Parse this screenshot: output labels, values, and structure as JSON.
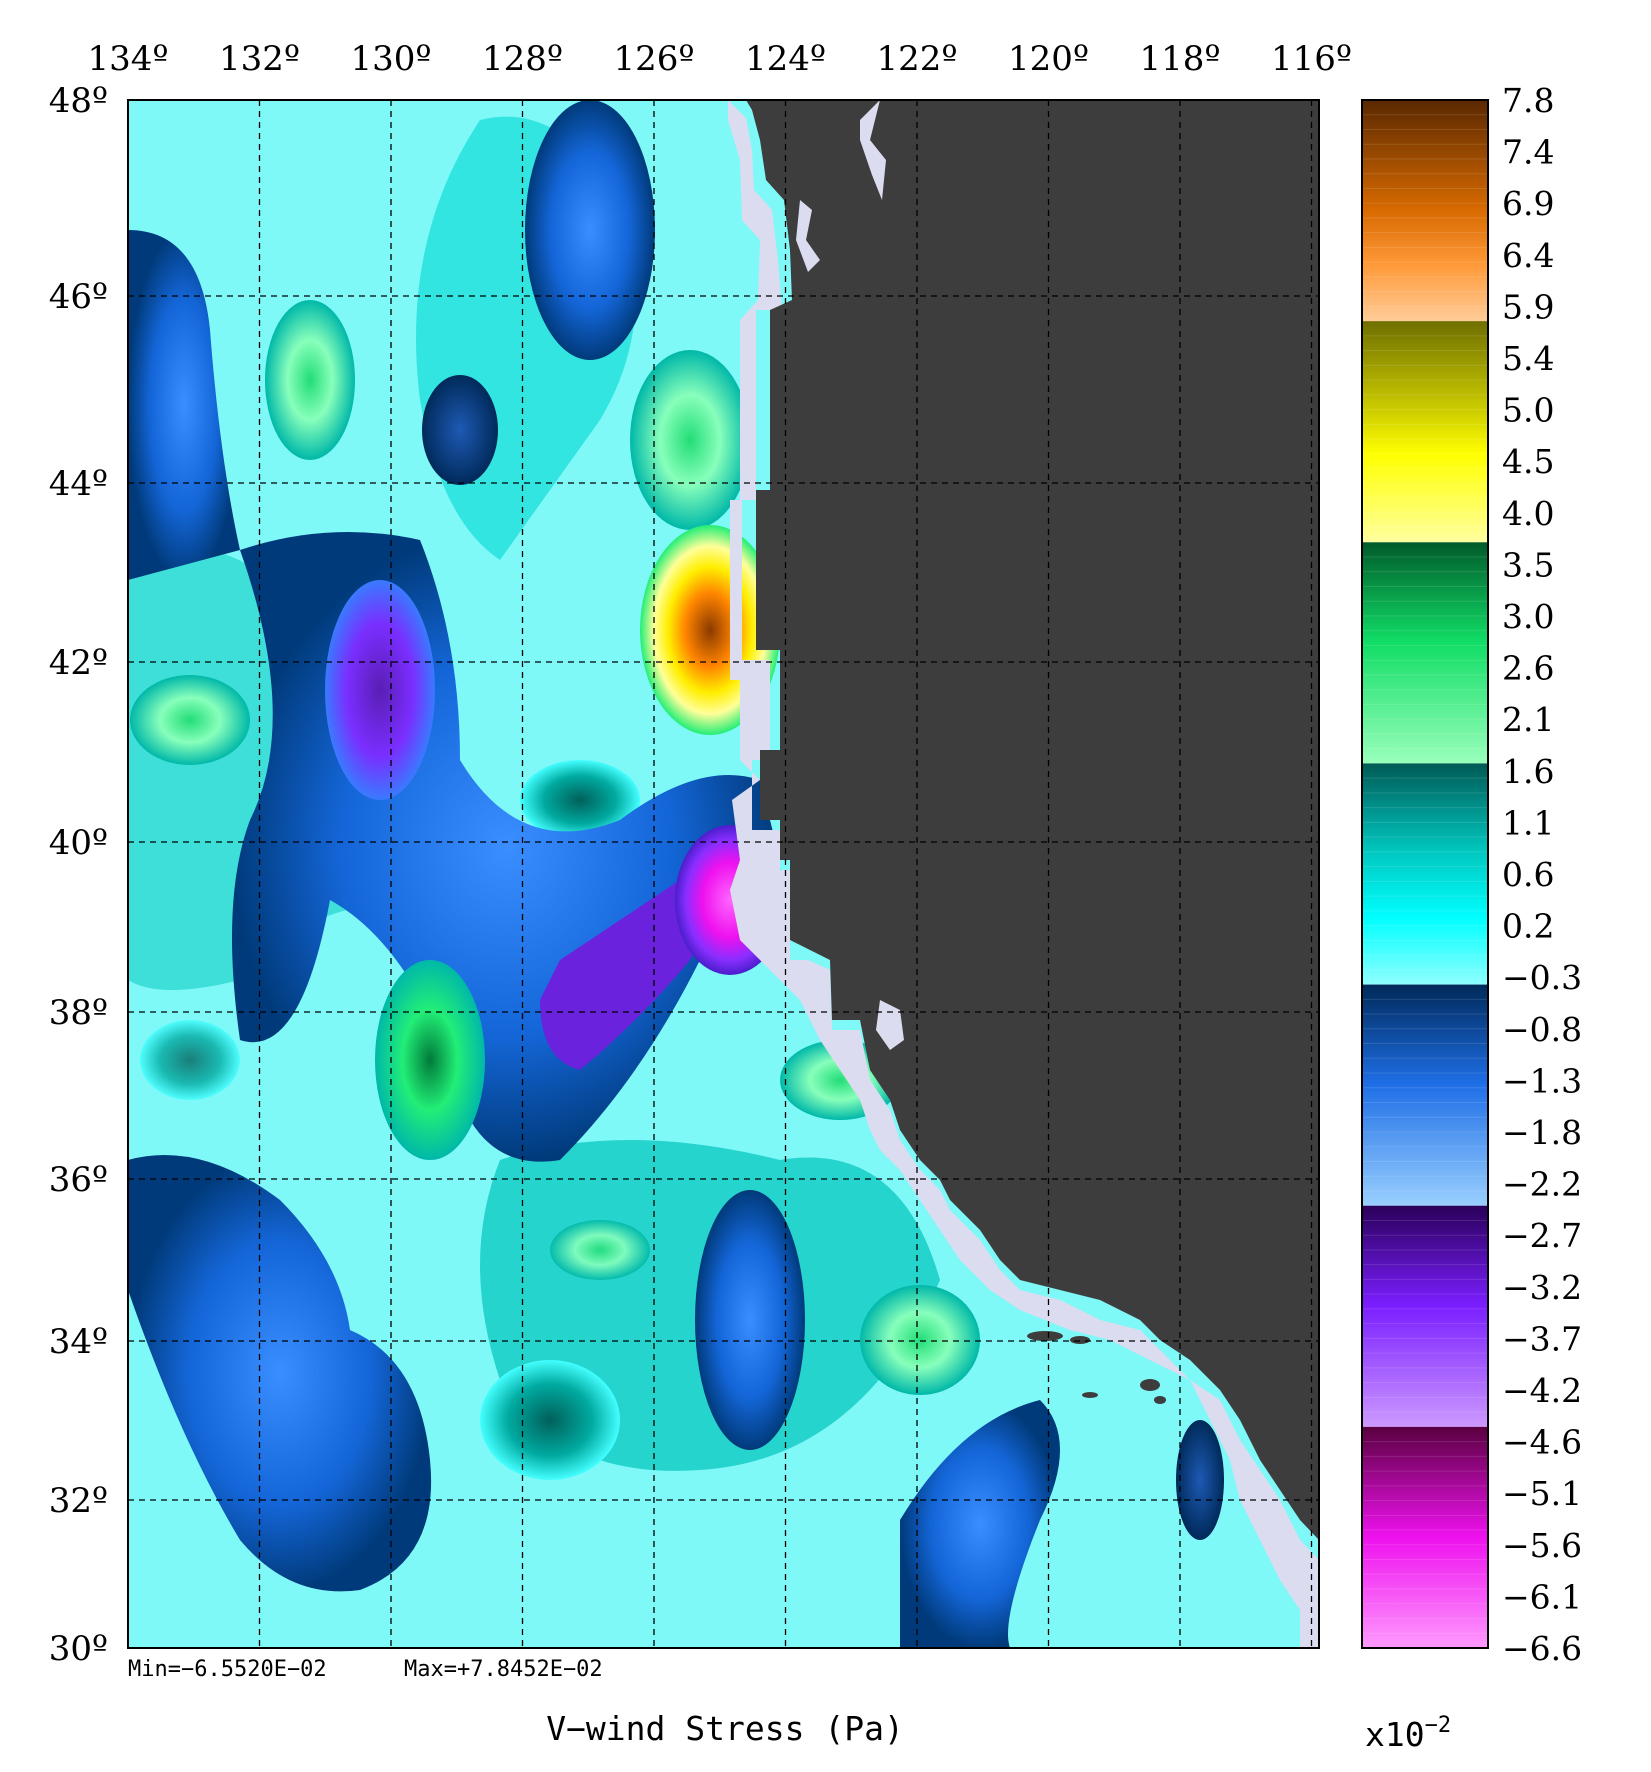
{
  "title": "V−wind Stress (Pa)",
  "scale_factor_label": "x10−2",
  "min_label": "Min=−6.5520E−02",
  "max_label": "Max=+7.8452E−02",
  "x_ticks": [
    "134º",
    "132º",
    "130º",
    "128º",
    "126º",
    "124º",
    "122º",
    "120º",
    "118º",
    "116º"
  ],
  "y_ticks": [
    "48º",
    "46º",
    "44º",
    "42º",
    "40º",
    "38º",
    "36º",
    "34º",
    "32º",
    "30º"
  ],
  "colorbar_labels": [
    "7.8",
    "7.4",
    "6.9",
    "6.4",
    "5.9",
    "5.4",
    "5.0",
    "4.5",
    "4.0",
    "3.5",
    "3.0",
    "2.6",
    "2.1",
    "1.6",
    "1.1",
    "0.6",
    "0.2",
    "−0.3",
    "−0.8",
    "−1.3",
    "−1.8",
    "−2.2",
    "−2.7",
    "−3.2",
    "−3.7",
    "−4.2",
    "−4.6",
    "−5.1",
    "−5.6",
    "−6.1",
    "−6.6"
  ],
  "colors": {
    "land": "#3d3d3d",
    "coast_mask": "#dcdcf0",
    "background": "#80ffff",
    "grid": "#000000"
  },
  "colorbar_bands": [
    "#7a3a00",
    "#ff8400",
    "#7c7400",
    "#ffff00",
    "#006b3a",
    "#22ee77",
    "#007a70",
    "#00e6e6",
    "#003a7a",
    "#1e78ff",
    "#3a007a",
    "#8f22ff",
    "#7a005a",
    "#ff22ff"
  ]
}
